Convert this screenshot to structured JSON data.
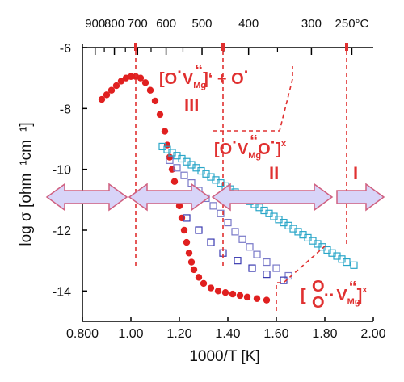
{
  "chart_data": {
    "type": "scatter",
    "xlabel": "1000/T [K]",
    "ylabel": "log σ [ohm⁻¹cm⁻¹]",
    "xlim": [
      0.8,
      2.0
    ],
    "ylim": [
      -15,
      -6
    ],
    "x_ticks": [
      "0.800",
      "1.00",
      "1.20",
      "1.40",
      "1.60",
      "1.80",
      "2.00"
    ],
    "x_tick_values": [
      0.8,
      1.0,
      1.2,
      1.4,
      1.6,
      1.8,
      2.0
    ],
    "y_ticks": [
      "-6",
      "-8",
      "-10",
      "-12",
      "-14"
    ],
    "y_tick_values": [
      -6,
      -8,
      -10,
      -12,
      -14
    ],
    "top_axis": {
      "labels": [
        "900",
        "800",
        "700",
        "600",
        "500",
        "400",
        "300",
        "250°C"
      ],
      "celsius": [
        900,
        800,
        700,
        600,
        500,
        400,
        300,
        250
      ],
      "minor_celsius": [
        850,
        750,
        650,
        550,
        450,
        350
      ],
      "major_x": [
        0.8525,
        0.9317,
        1.0277,
        1.1453,
        1.2935,
        1.4859,
        1.7452,
        1.9113
      ]
    },
    "boundaries_x": [
      1.02,
      1.38,
      1.89
    ],
    "series": [
      {
        "marker": "filled-circle",
        "color": "#e02020",
        "points": [
          [
            0.88,
            -7.7
          ],
          [
            0.9,
            -7.55
          ],
          [
            0.92,
            -7.4
          ],
          [
            0.94,
            -7.25
          ],
          [
            0.96,
            -7.1
          ],
          [
            0.98,
            -7.0
          ],
          [
            1.0,
            -6.95
          ],
          [
            1.02,
            -6.95
          ],
          [
            1.04,
            -7.0
          ],
          [
            1.06,
            -7.15
          ],
          [
            1.08,
            -7.4
          ],
          [
            1.1,
            -7.75
          ],
          [
            1.12,
            -8.2
          ],
          [
            1.14,
            -8.75
          ],
          [
            1.15,
            -9.2
          ],
          [
            1.16,
            -9.6
          ],
          [
            1.17,
            -10.0
          ],
          [
            1.18,
            -10.4
          ],
          [
            1.19,
            -10.8
          ],
          [
            1.2,
            -11.2
          ],
          [
            1.21,
            -11.6
          ],
          [
            1.22,
            -12.0
          ],
          [
            1.23,
            -12.4
          ],
          [
            1.24,
            -12.75
          ],
          [
            1.25,
            -13.05
          ],
          [
            1.26,
            -13.3
          ],
          [
            1.28,
            -13.55
          ],
          [
            1.3,
            -13.75
          ],
          [
            1.33,
            -13.9
          ],
          [
            1.36,
            -14.0
          ],
          [
            1.39,
            -14.05
          ],
          [
            1.42,
            -14.1
          ],
          [
            1.45,
            -14.15
          ],
          [
            1.48,
            -14.2
          ],
          [
            1.52,
            -14.25
          ],
          [
            1.56,
            -14.3
          ]
        ]
      },
      {
        "marker": "open-square",
        "color": "#2aa6c8",
        "points": [
          [
            1.13,
            -9.25
          ],
          [
            1.15,
            -9.35
          ],
          [
            1.17,
            -9.45
          ],
          [
            1.19,
            -9.55
          ],
          [
            1.21,
            -9.65
          ],
          [
            1.23,
            -9.75
          ],
          [
            1.25,
            -9.85
          ],
          [
            1.27,
            -9.95
          ],
          [
            1.29,
            -10.05
          ],
          [
            1.31,
            -10.15
          ],
          [
            1.33,
            -10.25
          ],
          [
            1.35,
            -10.35
          ],
          [
            1.37,
            -10.45
          ],
          [
            1.39,
            -10.55
          ],
          [
            1.41,
            -10.65
          ],
          [
            1.43,
            -10.75
          ],
          [
            1.45,
            -10.85
          ],
          [
            1.47,
            -10.95
          ],
          [
            1.49,
            -11.05
          ],
          [
            1.51,
            -11.15
          ],
          [
            1.53,
            -11.25
          ],
          [
            1.55,
            -11.35
          ],
          [
            1.57,
            -11.45
          ],
          [
            1.59,
            -11.55
          ],
          [
            1.61,
            -11.65
          ],
          [
            1.63,
            -11.75
          ],
          [
            1.65,
            -11.85
          ],
          [
            1.67,
            -11.95
          ],
          [
            1.69,
            -12.05
          ],
          [
            1.71,
            -12.15
          ],
          [
            1.73,
            -12.25
          ],
          [
            1.75,
            -12.35
          ],
          [
            1.77,
            -12.45
          ],
          [
            1.79,
            -12.55
          ],
          [
            1.81,
            -12.65
          ],
          [
            1.83,
            -12.75
          ],
          [
            1.85,
            -12.85
          ],
          [
            1.87,
            -12.95
          ],
          [
            1.89,
            -13.05
          ],
          [
            1.92,
            -13.15
          ]
        ]
      },
      {
        "marker": "open-square",
        "color": "#7878c8",
        "points": [
          [
            1.16,
            -9.7
          ],
          [
            1.19,
            -9.95
          ],
          [
            1.22,
            -10.2
          ],
          [
            1.25,
            -10.45
          ],
          [
            1.28,
            -10.7
          ],
          [
            1.31,
            -10.95
          ],
          [
            1.34,
            -11.2
          ],
          [
            1.37,
            -11.45
          ],
          [
            1.4,
            -11.75
          ],
          [
            1.43,
            -12.05
          ],
          [
            1.46,
            -12.3
          ],
          [
            1.49,
            -12.55
          ],
          [
            1.52,
            -12.8
          ],
          [
            1.56,
            -13.05
          ],
          [
            1.6,
            -13.25
          ],
          [
            1.65,
            -13.5
          ]
        ]
      },
      {
        "marker": "open-square",
        "color": "#3a3ab0",
        "points": [
          [
            1.23,
            -11.6
          ],
          [
            1.28,
            -12.0
          ],
          [
            1.33,
            -12.4
          ],
          [
            1.38,
            -12.75
          ],
          [
            1.44,
            -13.0
          ],
          [
            1.5,
            -13.25
          ],
          [
            1.56,
            -13.45
          ],
          [
            1.63,
            -13.65
          ]
        ]
      }
    ],
    "annotations": {
      "regions": [
        "III",
        "II",
        "I"
      ],
      "formula1": {
        "a": "[O",
        "b": "·",
        "c": "V",
        "d": "Mg",
        "e": "“",
        "f": "]‘ + O",
        "g": "·"
      },
      "formula2": {
        "a": "[O",
        "b": "·",
        "c": "V",
        "d": "Mg",
        "e": "“",
        "f": "O",
        "g": "·",
        "h": "]",
        "i": "x"
      },
      "formula3": {
        "a": "[",
        "b": "O",
        "c": "O",
        "d": "··",
        "e": "V",
        "f": "Mg",
        "g": "“",
        "h": "]",
        "i": "x"
      }
    },
    "colors": {
      "accent": "#e03030",
      "arrow_fill": "#d8d4f8",
      "arrow_stroke": "#d06080"
    }
  }
}
